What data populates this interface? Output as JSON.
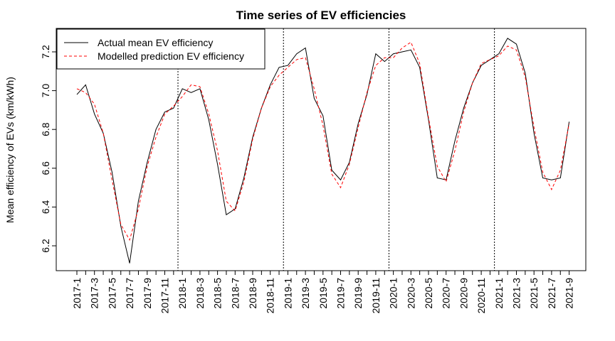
{
  "chart_data": {
    "type": "line",
    "title": "Time series of EV efficiencies",
    "xlabel": "",
    "ylabel": "Mean efficiency of EVs (km/kWh)",
    "ylim": [
      6.1,
      7.3
    ],
    "yticks": [
      6.2,
      6.4,
      6.6,
      6.8,
      7.0,
      7.2
    ],
    "ytick_labels": [
      "6.2",
      "6.4",
      "6.6",
      "6.8",
      "7.0",
      "7.2"
    ],
    "x": [
      "2017-1",
      "2017-2",
      "2017-3",
      "2017-4",
      "2017-5",
      "2017-6",
      "2017-7",
      "2017-8",
      "2017-9",
      "2017-10",
      "2017-11",
      "2017-12",
      "2018-1",
      "2018-2",
      "2018-3",
      "2018-4",
      "2018-5",
      "2018-6",
      "2018-7",
      "2018-8",
      "2018-9",
      "2018-10",
      "2018-11",
      "2018-12",
      "2019-1",
      "2019-2",
      "2019-3",
      "2019-4",
      "2019-5",
      "2019-6",
      "2019-7",
      "2019-8",
      "2019-9",
      "2019-10",
      "2019-11",
      "2019-12",
      "2020-1",
      "2020-2",
      "2020-3",
      "2020-4",
      "2020-5",
      "2020-6",
      "2020-7",
      "2020-8",
      "2020-9",
      "2020-10",
      "2020-11",
      "2020-12",
      "2021-1",
      "2021-2",
      "2021-3",
      "2021-4",
      "2021-5",
      "2021-6",
      "2021-7",
      "2021-8",
      "2021-9"
    ],
    "xtick_labels": [
      "2017-1",
      "2017-3",
      "2017-5",
      "2017-7",
      "2017-9",
      "2017-11",
      "2018-1",
      "2018-3",
      "2018-5",
      "2018-7",
      "2018-9",
      "2018-11",
      "2019-1",
      "2019-3",
      "2019-5",
      "2019-7",
      "2019-9",
      "2019-11",
      "2020-1",
      "2020-3",
      "2020-5",
      "2020-7",
      "2020-9",
      "2020-11",
      "2021-1",
      "2021-3",
      "2021-5",
      "2021-7",
      "2021-9"
    ],
    "vlines_at": [
      "2017-12",
      "2018-12",
      "2019-12",
      "2020-12"
    ],
    "legend_position": "top-left",
    "series": [
      {
        "name": "Actual mean EV efficiency",
        "color": "#000000",
        "linestyle": "solid",
        "values": [
          6.98,
          7.03,
          6.88,
          6.78,
          6.58,
          6.3,
          6.11,
          6.43,
          6.63,
          6.8,
          6.89,
          6.91,
          7.01,
          6.99,
          7.01,
          6.85,
          6.62,
          6.36,
          6.39,
          6.55,
          6.76,
          6.91,
          7.03,
          7.12,
          7.13,
          7.19,
          7.22,
          6.96,
          6.87,
          6.59,
          6.54,
          6.63,
          6.83,
          6.98,
          7.19,
          7.15,
          7.19,
          7.2,
          7.21,
          7.12,
          6.85,
          6.55,
          6.54,
          6.74,
          6.91,
          7.04,
          7.13,
          7.16,
          7.19,
          7.27,
          7.24,
          7.09,
          6.78,
          6.55,
          6.54,
          6.55,
          6.84
        ]
      },
      {
        "name": "Modelled prediction EV efficiency",
        "color": "#ff0000",
        "linestyle": "dashed",
        "values": [
          7.01,
          6.99,
          6.93,
          6.78,
          6.54,
          6.31,
          6.23,
          6.39,
          6.61,
          6.76,
          6.88,
          6.92,
          6.97,
          7.03,
          7.02,
          6.88,
          6.69,
          6.43,
          6.38,
          6.53,
          6.75,
          6.91,
          7.02,
          7.08,
          7.12,
          7.16,
          7.17,
          7.01,
          6.82,
          6.57,
          6.5,
          6.62,
          6.81,
          6.99,
          7.13,
          7.17,
          7.17,
          7.22,
          7.25,
          7.14,
          6.86,
          6.61,
          6.53,
          6.69,
          6.89,
          7.04,
          7.14,
          7.16,
          7.18,
          7.23,
          7.21,
          7.07,
          6.81,
          6.58,
          6.49,
          6.59,
          6.83
        ]
      }
    ]
  }
}
